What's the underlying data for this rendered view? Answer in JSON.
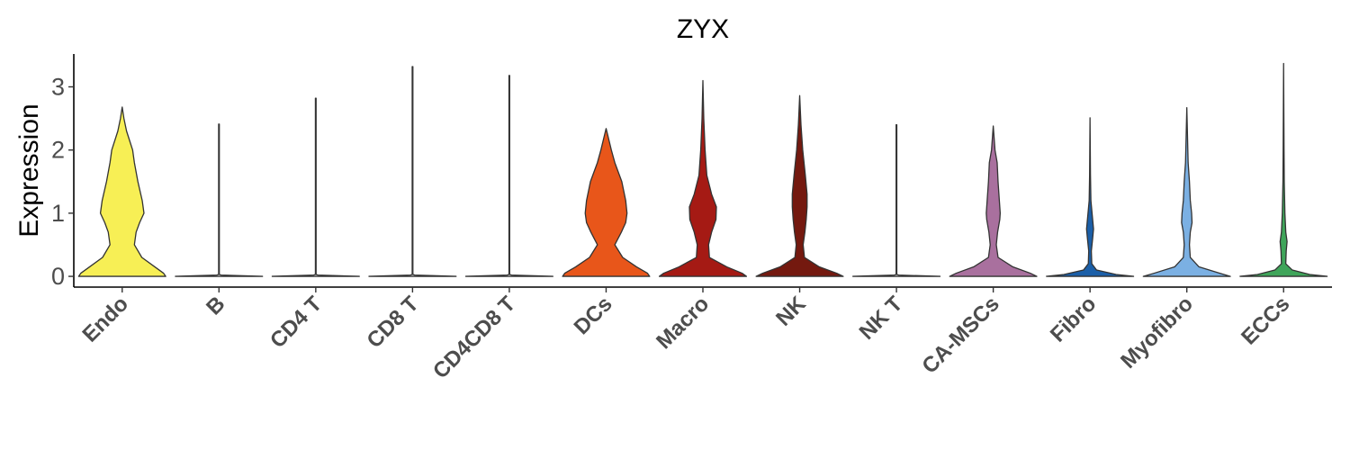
{
  "chart_data": {
    "type": "violin",
    "title": "ZYX",
    "xlabel": "",
    "ylabel": "Expression",
    "ylim": [
      -0.17,
      3.52
    ],
    "yticks": [
      0,
      1,
      2,
      3
    ],
    "categories": [
      "Endo",
      "B",
      "CD4 T",
      "CD8 T",
      "CD4CD8 T",
      "DCs",
      "Macro",
      "NK",
      "NK T",
      "CA-MSCs",
      "Fibro",
      "Myofibro",
      "ECCs"
    ],
    "colors": [
      "#F7EF55",
      "#FFFFFF",
      "#FFFFFF",
      "#FFFFFF",
      "#FFFFFF",
      "#E8561A",
      "#A51A14",
      "#74190F",
      "#FFFFFF",
      "#A9709E",
      "#1B5FA8",
      "#7BB0E3",
      "#3FA55A"
    ],
    "max": [
      2.68,
      2.41,
      2.82,
      3.32,
      3.18,
      2.34,
      3.1,
      2.86,
      2.4,
      2.38,
      2.51,
      2.67,
      3.37
    ],
    "density_profiles": [
      [
        [
          0,
          1.0
        ],
        [
          0.05,
          0.95
        ],
        [
          0.15,
          0.75
        ],
        [
          0.3,
          0.45
        ],
        [
          0.5,
          0.28
        ],
        [
          0.7,
          0.32
        ],
        [
          0.85,
          0.4
        ],
        [
          1.0,
          0.5
        ],
        [
          1.2,
          0.46
        ],
        [
          1.5,
          0.36
        ],
        [
          1.8,
          0.28
        ],
        [
          2.0,
          0.24
        ],
        [
          2.3,
          0.1
        ],
        [
          2.5,
          0.04
        ],
        [
          2.68,
          0.0
        ]
      ],
      [
        [
          0,
          1.0
        ],
        [
          0.02,
          0.05
        ],
        [
          0.03,
          0.008
        ],
        [
          2.41,
          0.008
        ]
      ],
      [
        [
          0,
          1.0
        ],
        [
          0.02,
          0.05
        ],
        [
          0.03,
          0.008
        ],
        [
          2.82,
          0.008
        ]
      ],
      [
        [
          0,
          1.0
        ],
        [
          0.02,
          0.05
        ],
        [
          0.03,
          0.008
        ],
        [
          3.32,
          0.008
        ]
      ],
      [
        [
          0,
          1.0
        ],
        [
          0.02,
          0.05
        ],
        [
          0.03,
          0.008
        ],
        [
          3.18,
          0.008
        ]
      ],
      [
        [
          0,
          1.0
        ],
        [
          0.05,
          0.95
        ],
        [
          0.15,
          0.7
        ],
        [
          0.3,
          0.38
        ],
        [
          0.5,
          0.2
        ],
        [
          0.7,
          0.35
        ],
        [
          0.85,
          0.45
        ],
        [
          1.0,
          0.48
        ],
        [
          1.2,
          0.45
        ],
        [
          1.5,
          0.36
        ],
        [
          1.8,
          0.2
        ],
        [
          2.0,
          0.12
        ],
        [
          2.2,
          0.05
        ],
        [
          2.34,
          0.0
        ]
      ],
      [
        [
          0,
          1.0
        ],
        [
          0.05,
          0.9
        ],
        [
          0.15,
          0.55
        ],
        [
          0.3,
          0.15
        ],
        [
          0.5,
          0.13
        ],
        [
          0.7,
          0.2
        ],
        [
          0.9,
          0.3
        ],
        [
          1.1,
          0.31
        ],
        [
          1.3,
          0.2
        ],
        [
          1.6,
          0.09
        ],
        [
          2.0,
          0.05
        ],
        [
          2.5,
          0.02
        ],
        [
          3.1,
          0.0
        ]
      ],
      [
        [
          0,
          1.0
        ],
        [
          0.05,
          0.85
        ],
        [
          0.15,
          0.45
        ],
        [
          0.3,
          0.11
        ],
        [
          0.5,
          0.08
        ],
        [
          0.7,
          0.12
        ],
        [
          0.9,
          0.15
        ],
        [
          1.1,
          0.17
        ],
        [
          1.3,
          0.17
        ],
        [
          1.6,
          0.13
        ],
        [
          2.0,
          0.07
        ],
        [
          2.4,
          0.03
        ],
        [
          2.86,
          0.0
        ]
      ],
      [
        [
          0,
          1.0
        ],
        [
          0.02,
          0.05
        ],
        [
          0.03,
          0.008
        ],
        [
          2.4,
          0.008
        ]
      ],
      [
        [
          0,
          1.0
        ],
        [
          0.05,
          0.85
        ],
        [
          0.15,
          0.45
        ],
        [
          0.3,
          0.11
        ],
        [
          0.5,
          0.07
        ],
        [
          0.7,
          0.1
        ],
        [
          0.9,
          0.15
        ],
        [
          1.0,
          0.16
        ],
        [
          1.2,
          0.14
        ],
        [
          1.5,
          0.11
        ],
        [
          1.8,
          0.09
        ],
        [
          2.0,
          0.04
        ],
        [
          2.38,
          0.0
        ]
      ],
      [
        [
          0,
          1.0
        ],
        [
          0.03,
          0.6
        ],
        [
          0.1,
          0.15
        ],
        [
          0.2,
          0.04
        ],
        [
          0.4,
          0.03
        ],
        [
          0.6,
          0.06
        ],
        [
          0.75,
          0.08
        ],
        [
          0.9,
          0.06
        ],
        [
          1.2,
          0.02
        ],
        [
          1.6,
          0.01
        ],
        [
          2.51,
          0.0
        ]
      ],
      [
        [
          0,
          1.0
        ],
        [
          0.05,
          0.75
        ],
        [
          0.15,
          0.28
        ],
        [
          0.3,
          0.08
        ],
        [
          0.5,
          0.06
        ],
        [
          0.7,
          0.08
        ],
        [
          0.85,
          0.12
        ],
        [
          1.0,
          0.11
        ],
        [
          1.2,
          0.08
        ],
        [
          1.5,
          0.06
        ],
        [
          1.8,
          0.03
        ],
        [
          2.67,
          0.0
        ]
      ],
      [
        [
          0,
          1.0
        ],
        [
          0.03,
          0.6
        ],
        [
          0.1,
          0.2
        ],
        [
          0.2,
          0.05
        ],
        [
          0.4,
          0.06
        ],
        [
          0.55,
          0.08
        ],
        [
          0.7,
          0.05
        ],
        [
          1.0,
          0.03
        ],
        [
          1.5,
          0.015
        ],
        [
          2.0,
          0.01
        ],
        [
          3.37,
          0.0
        ]
      ]
    ],
    "grid": false,
    "legend": "none"
  }
}
